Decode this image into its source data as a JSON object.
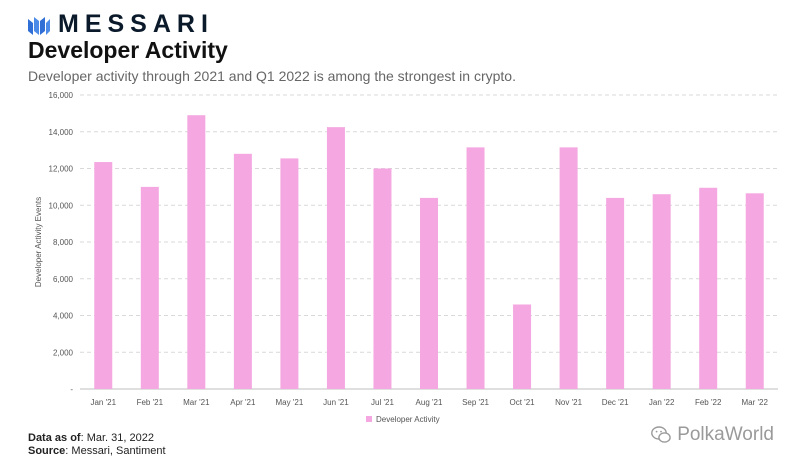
{
  "header": {
    "brand": "MESSARI",
    "title": "Developer Activity",
    "subtitle": "Developer activity through 2021 and Q1 2022 is among the strongest in crypto."
  },
  "footer": {
    "data_label": "Data as of",
    "data_value": ": Mar. 31, 2022",
    "source_label": "Source",
    "source_value": ": Messari, Santiment"
  },
  "watermark": {
    "text": "PolkaWorld",
    "icon": "wechat-icon"
  },
  "colors": {
    "bar": "#f4a7e0",
    "grid": "#d9d9d9",
    "axis": "#bfbfbf",
    "text": "#555555"
  },
  "chart_data": {
    "type": "bar",
    "title": "Developer Activity",
    "subtitle": "Developer activity through 2021 and Q1 2022 is among the strongest in crypto.",
    "xlabel": "",
    "ylabel": "Developer Activity Events",
    "ylim": [
      0,
      16000
    ],
    "yticks": [
      0,
      2000,
      4000,
      6000,
      8000,
      10000,
      12000,
      14000,
      16000
    ],
    "ytick_labels": [
      "-",
      "2,000",
      "4,000",
      "6,000",
      "8,000",
      "10,000",
      "12,000",
      "14,000",
      "16,000"
    ],
    "grid": true,
    "legend_position": "bottom-center",
    "categories": [
      "Jan '21",
      "Feb '21",
      "Mar '21",
      "Apr '21",
      "May '21",
      "Jun '21",
      "Jul '21",
      "Aug '21",
      "Sep '21",
      "Oct '21",
      "Nov '21",
      "Dec '21",
      "Jan '22",
      "Feb '22",
      "Mar '22"
    ],
    "series": [
      {
        "name": "Developer Activity",
        "values": [
          12350,
          11000,
          14900,
          12800,
          12550,
          14250,
          12000,
          10400,
          13150,
          4600,
          13150,
          10400,
          10600,
          10950,
          10650
        ]
      }
    ]
  }
}
